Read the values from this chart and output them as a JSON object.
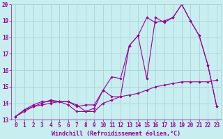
{
  "title": "",
  "xlabel": "Windchill (Refroidissement éolien,°C)",
  "ylabel": "",
  "bg_color": "#c8eef0",
  "grid_color": "#a8d4d8",
  "line_color": "#990099",
  "xlim": [
    -0.5,
    23.5
  ],
  "ylim": [
    13,
    20
  ],
  "yticks": [
    13,
    14,
    15,
    16,
    17,
    18,
    19,
    20
  ],
  "xticks": [
    0,
    1,
    2,
    3,
    4,
    5,
    6,
    7,
    8,
    9,
    10,
    11,
    12,
    13,
    14,
    15,
    16,
    17,
    18,
    19,
    20,
    21,
    22,
    23
  ],
  "line1_x": [
    0,
    1,
    2,
    3,
    4,
    5,
    6,
    7,
    8,
    9,
    10,
    11,
    12,
    13,
    14,
    15,
    16,
    17,
    18,
    19,
    20,
    21,
    22,
    23
  ],
  "line1_y": [
    13.2,
    13.5,
    13.8,
    13.9,
    14.0,
    14.1,
    14.1,
    13.9,
    13.5,
    13.5,
    14.0,
    14.2,
    14.4,
    14.5,
    14.6,
    14.8,
    15.0,
    15.1,
    15.2,
    15.3,
    15.3,
    15.3,
    15.3,
    15.4
  ],
  "line2_x": [
    0,
    1,
    2,
    3,
    4,
    5,
    6,
    7,
    8,
    9,
    10,
    11,
    12,
    13,
    14,
    15,
    16,
    17,
    18,
    19,
    20,
    21,
    22,
    23
  ],
  "line2_y": [
    13.2,
    13.6,
    13.9,
    14.1,
    14.1,
    14.1,
    13.9,
    13.5,
    13.5,
    13.7,
    14.8,
    14.4,
    14.4,
    17.5,
    18.1,
    15.5,
    19.2,
    18.9,
    19.2,
    20.0,
    19.0,
    18.1,
    16.3,
    13.8
  ],
  "line3_x": [
    0,
    1,
    2,
    3,
    4,
    5,
    6,
    7,
    8,
    9,
    10,
    11,
    12,
    13,
    14,
    15,
    16,
    17,
    18,
    19,
    20,
    21,
    22,
    23
  ],
  "line3_y": [
    13.2,
    13.6,
    13.8,
    14.0,
    14.2,
    14.1,
    14.1,
    13.8,
    13.9,
    13.9,
    14.8,
    15.6,
    15.5,
    17.5,
    18.1,
    19.2,
    18.9,
    19.0,
    19.2,
    20.0,
    19.0,
    18.1,
    16.3,
    13.8
  ],
  "tick_fontsize": 5.5,
  "label_fontsize": 6.0
}
